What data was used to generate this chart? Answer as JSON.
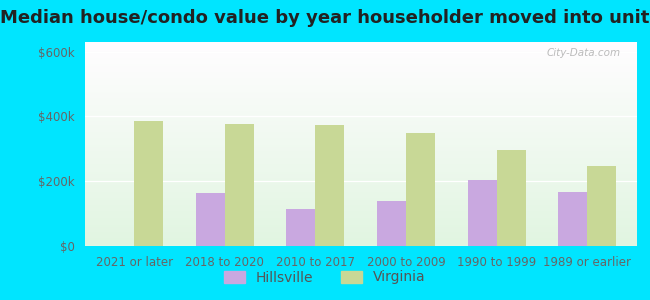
{
  "title": "Median house/condo value by year householder moved into unit",
  "categories": [
    "2021 or later",
    "2018 to 2020",
    "2010 to 2017",
    "2000 to 2009",
    "1990 to 1999",
    "1989 or earlier"
  ],
  "hillsville": [
    0,
    165000,
    115000,
    140000,
    205000,
    168000
  ],
  "virginia": [
    385000,
    378000,
    375000,
    350000,
    295000,
    248000
  ],
  "hillsville_color": "#c9a8e0",
  "virginia_color": "#c8d896",
  "background_outer": "#00e5ff",
  "yticks": [
    0,
    200000,
    400000,
    600000
  ],
  "ylabels": [
    "$0",
    "$200k",
    "$400k",
    "$600k"
  ],
  "ylim": [
    0,
    630000
  ],
  "bar_width": 0.32,
  "legend_labels": [
    "Hillsville",
    "Virginia"
  ],
  "watermark": "City-Data.com",
  "title_fontsize": 13,
  "tick_fontsize": 8.5,
  "legend_fontsize": 10
}
